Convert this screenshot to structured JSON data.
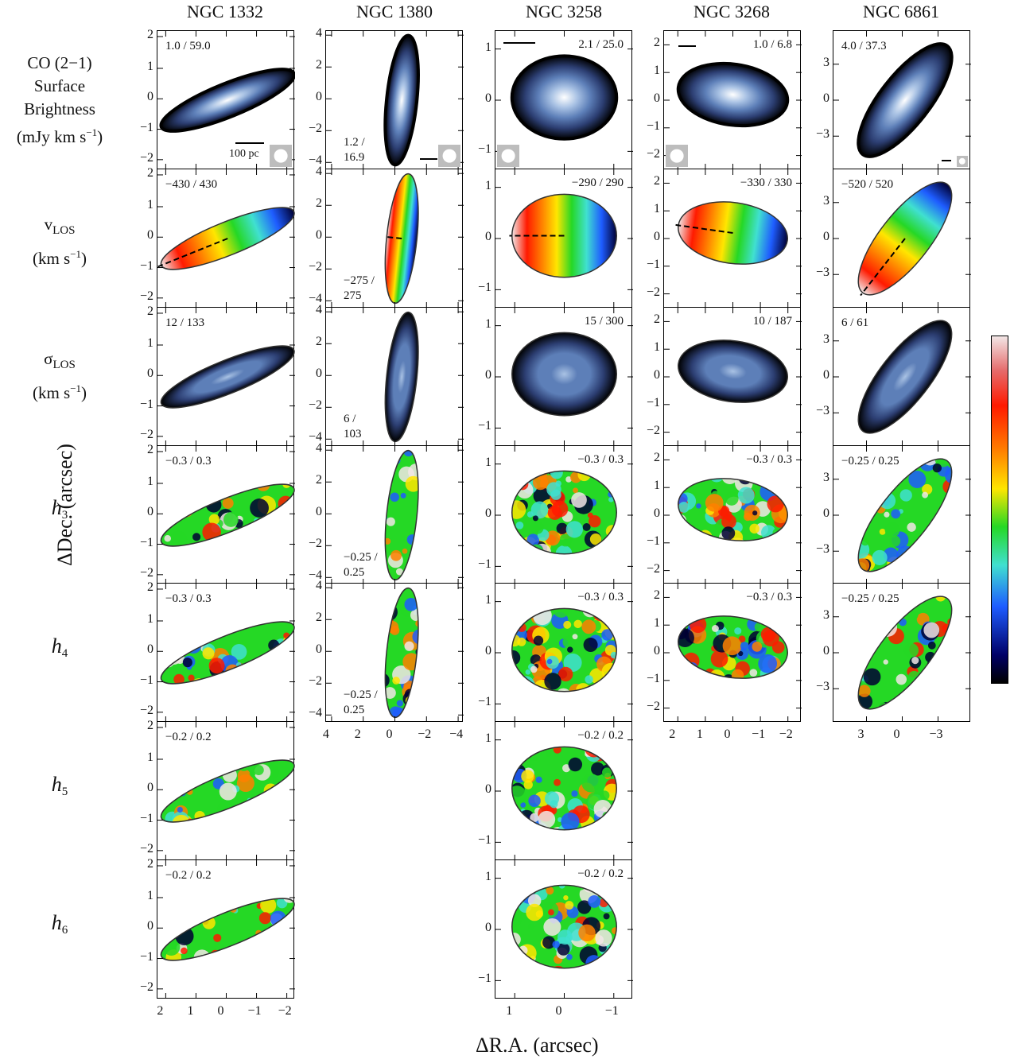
{
  "figure": {
    "columns": [
      {
        "id": "ngc1332",
        "title": "NGC 1332"
      },
      {
        "id": "ngc1380",
        "title": "NGC 1380"
      },
      {
        "id": "ngc3258",
        "title": "NGC 3258"
      },
      {
        "id": "ngc3268",
        "title": "NGC 3268"
      },
      {
        "id": "ngc6861",
        "title": "NGC 6861"
      }
    ],
    "row_labels": {
      "co": {
        "line1": "CO (2−1)",
        "line2": "Surface",
        "line3": "Brightness",
        "line4": "(mJy km s",
        "line4_sup": "−1",
        "line4_end": ")"
      },
      "vlos": {
        "sym": "v",
        "sub": "LOS",
        "unit": "(km s",
        "sup": "−1",
        "end": ")"
      },
      "slos": {
        "sym": "σ",
        "sub": "LOS",
        "unit": "(km s",
        "sup": "−1",
        "end": ")"
      },
      "h3": {
        "sym": "h",
        "sub": "3"
      },
      "h4": {
        "sym": "h",
        "sub": "4"
      },
      "h5": {
        "sym": "h",
        "sub": "5"
      },
      "h6": {
        "sym": "h",
        "sub": "6"
      }
    },
    "y_axis_title": "ΔDec. (arcsec)",
    "x_axis_title": "ΔR.A. (arcsec)",
    "scalebar_label": "100 pc",
    "ranges": {
      "ngc1332": {
        "co": "1.0 / 59.0",
        "vlos": "−430 / 430",
        "slos": "12 / 133",
        "h3": "−0.3 / 0.3",
        "h4": "−0.3 / 0.3",
        "h5": "−0.2 / 0.2",
        "h6": "−0.2 / 0.2"
      },
      "ngc1380": {
        "co": "1.2 /\n16.9",
        "vlos": "−275 /\n275",
        "slos": "6 /\n103",
        "h3": "−0.25 /\n0.25",
        "h4": "−0.25 /\n0.25"
      },
      "ngc3258": {
        "co": "2.1 / 25.0",
        "vlos": "−290 / 290",
        "slos": "15 / 300",
        "h3": "−0.3 / 0.3",
        "h4": "−0.3 / 0.3",
        "h5": "−0.2 / 0.2",
        "h6": "−0.2 / 0.2"
      },
      "ngc3268": {
        "co": "1.0 / 6.8",
        "vlos": "−330 / 330",
        "slos": "10 / 187",
        "h3": "−0.3 / 0.3",
        "h4": "−0.3 / 0.3"
      },
      "ngc6861": {
        "co": "4.0 / 37.3",
        "vlos": "−520 / 520",
        "slos": "6 / 61",
        "h3": "−0.25 / 0.25",
        "h4": "−0.25 / 0.25"
      }
    },
    "y_ticks": {
      "ngc1332": [
        "2",
        "1",
        "0",
        "−1",
        "−2"
      ],
      "ngc1380": [
        "4",
        "2",
        "0",
        "−2",
        "−4"
      ],
      "ngc3258": [
        "1",
        "0",
        "−1"
      ],
      "ngc3268": [
        "2",
        "1",
        "0",
        "−1",
        "−2"
      ],
      "ngc6861": [
        "3",
        "0",
        "−3"
      ]
    },
    "x_ticks": {
      "ngc1332": [
        "2",
        "1",
        "0",
        "−1",
        "−2"
      ],
      "ngc1380": [
        "4",
        "2",
        "0",
        "−2",
        "−4"
      ],
      "ngc3258": [
        "1",
        "0",
        "−1"
      ],
      "ngc3268": [
        "2",
        "1",
        "0",
        "−1",
        "−2"
      ],
      "ngc6861": [
        "3",
        "0",
        "−3"
      ]
    },
    "colormaps": {
      "moment": [
        "#000000",
        "#2c3e72",
        "#5d7fb8",
        "#a9c2e4",
        "#ffffff"
      ],
      "velocity": [
        "#000033",
        "#1e5cff",
        "#40e0d0",
        "#25d825",
        "#ffe600",
        "#ff8000",
        "#ff1a00",
        "#f2e6e6"
      ]
    }
  }
}
